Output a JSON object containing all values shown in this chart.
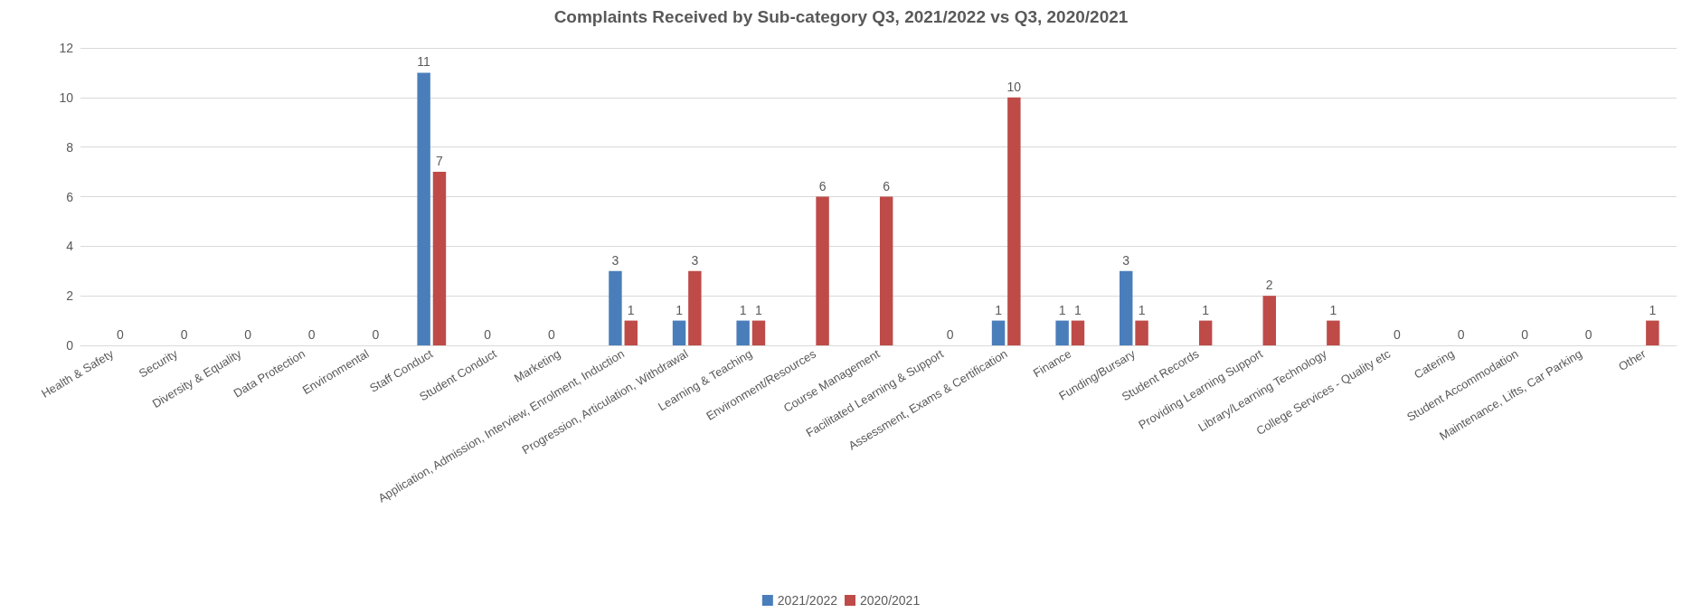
{
  "chart_data": {
    "type": "bar",
    "title": "Complaints Received by Sub-category Q3, 2021/2022 vs Q3, 2020/2021",
    "categories": [
      "Health & Safety",
      "Security",
      "Diversity & Equality",
      "Data Protection",
      "Environmental",
      "Staff Conduct",
      "Student Conduct",
      "Marketing",
      "Application, Admission, Interview, Enrolment, Induction",
      "Progression, Articulation, Withdrawal",
      "Learning & Teaching",
      "Environment/Resources",
      "Course Management",
      "Facilitated Learning & Support",
      "Assessment, Exams & Certification",
      "Finance",
      "Funding/Bursary",
      "Student Records",
      "Providing Learning Support",
      "Library/Learning Technology",
      "College Services - Quality etc",
      "Catering",
      "Student Accommodation",
      "Maintenance, Lifts, Car Parking",
      "Other"
    ],
    "series": [
      {
        "name": "2021/2022",
        "color": "#4a7ebb",
        "values": [
          null,
          null,
          null,
          null,
          null,
          11,
          0,
          0,
          3,
          1,
          1,
          null,
          null,
          null,
          1,
          1,
          3,
          null,
          null,
          null,
          null,
          null,
          null,
          null,
          null
        ]
      },
      {
        "name": "2020/2021",
        "color": "#be4b48",
        "values": [
          0,
          0,
          0,
          0,
          0,
          7,
          null,
          null,
          1,
          3,
          1,
          6,
          6,
          0,
          10,
          1,
          1,
          1,
          2,
          1,
          0,
          0,
          0,
          0,
          1
        ]
      }
    ],
    "ylim": [
      0,
      12
    ],
    "yticks": [
      0,
      2,
      4,
      6,
      8,
      10,
      12
    ],
    "grid": "y",
    "legend": "bottom",
    "data_labels": true
  }
}
